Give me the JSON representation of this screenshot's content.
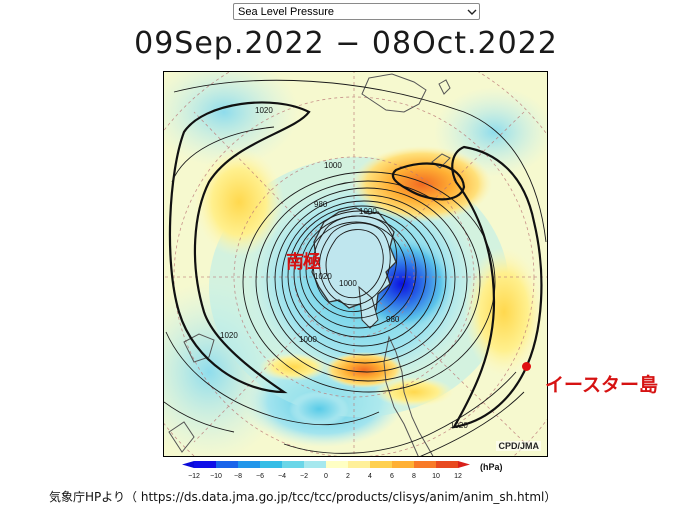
{
  "variable_select": {
    "selected": "Sea Level Pressure"
  },
  "period_title": "09Sep.2022 − 08Oct.2022",
  "map": {
    "credit": "CPD/JMA",
    "pole_label": "南極",
    "easter_island_label": "イースター島",
    "isobar_labels": [
      "1020",
      "1000",
      "980",
      "1000",
      "1020",
      "1000",
      "980",
      "1020",
      "1000",
      "1020"
    ]
  },
  "colorbar": {
    "ticks": [
      "−12",
      "−10",
      "−8",
      "−6",
      "−4",
      "−2",
      "0",
      "2",
      "4",
      "6",
      "8",
      "10",
      "12"
    ],
    "unit": "(hPa)",
    "colors": [
      "#1010e8",
      "#1a64ea",
      "#2296ea",
      "#35bde6",
      "#6ad6e8",
      "#a6e8ee",
      "#ffffc4",
      "#fff09a",
      "#ffd050",
      "#ffb035",
      "#f87a28",
      "#e84a20"
    ]
  },
  "source_text": "気象庁HPより（ https://ds.data.jma.go.jp/tcc/tcc/products/clisys/anim/anim_sh.html）",
  "colors": {
    "annotation_red": "#d61212",
    "map_background": "#f3f8c9"
  }
}
